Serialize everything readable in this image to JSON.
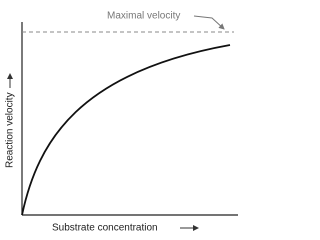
{
  "labels": {
    "asymptote": "Maximal velocity",
    "y_axis": "Reaction velocity",
    "x_axis": "Substrate concentration"
  }
}
